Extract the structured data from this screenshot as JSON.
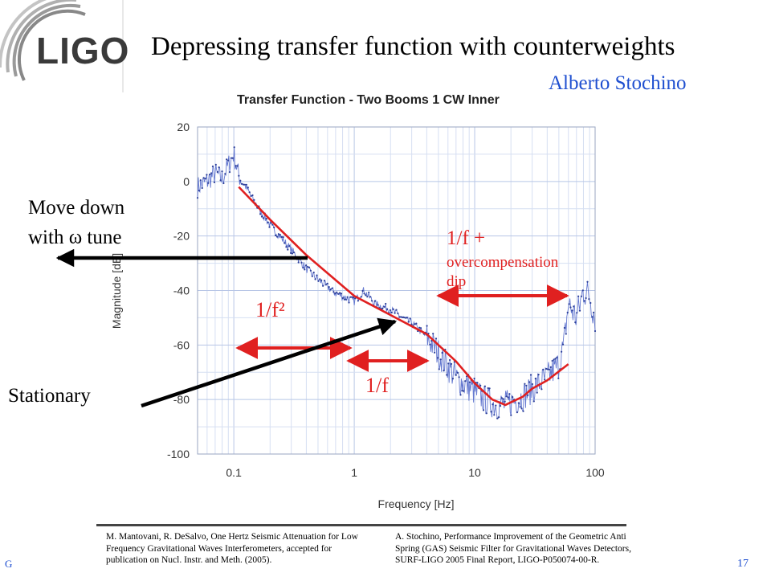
{
  "logo": {
    "text": "LIGO"
  },
  "slide": {
    "title": "Depressing transfer function with counterweights",
    "author": "Alberto Stochino"
  },
  "annotations": {
    "move_down": [
      "Move down",
      "with ω tune"
    ],
    "stationary": "Stationary",
    "one_over_f2": "1/f²",
    "one_over_f": "1/f",
    "overcomp_1": "1/f +",
    "overcomp_2": "overcompensation",
    "overcomp_3": "dip"
  },
  "references": {
    "left": "M. Mantovani, R. DeSalvo, One Hertz Seismic Attenuation for Low Frequency Gravitational Waves Interferometers, accepted for publication on Nucl. Instr. and Meth. (2005).",
    "right": "A. Stochino, Performance Improvement of the Geometric Anti Spring (GAS) Seismic Filter for Gravitational Waves Detectors, SURF-LIGO 2005 Final Report, LIGO-P050074-00-R."
  },
  "footer": {
    "left": "G",
    "right": "17"
  },
  "colors": {
    "fit": "#e02020",
    "measured": "#4a62c8",
    "author": "#1f4fd0"
  },
  "chart_data": {
    "type": "line",
    "title": "Transfer Function - Two Booms 1 CW Inner",
    "xlabel": "Frequency [Hz]",
    "ylabel": "Magnitude [dB]",
    "xscale": "log",
    "xlim": [
      0.05,
      100
    ],
    "ylim": [
      -100,
      20
    ],
    "xticks": [
      0.1,
      1,
      10,
      100
    ],
    "xtick_labels": [
      "0.1",
      "1",
      "10",
      "100"
    ],
    "yticks": [
      20,
      0,
      -20,
      -40,
      -60,
      -80,
      -100
    ],
    "grid": true,
    "series": [
      {
        "x": [
          0.05,
          0.06,
          0.07,
          0.08,
          0.09,
          0.1,
          0.11,
          0.13,
          0.15,
          0.2,
          0.3,
          0.4,
          0.5,
          0.7,
          1.0,
          1.2,
          1.5,
          2,
          2.5,
          3,
          4,
          5,
          6,
          7,
          8,
          10,
          12,
          15,
          18,
          20,
          25,
          30,
          40,
          50,
          55,
          60,
          70,
          80,
          90,
          100
        ],
        "y": [
          -2,
          0,
          3,
          1,
          6,
          10,
          2,
          -3,
          -8,
          -16,
          -25,
          -32,
          -36,
          -41,
          -44,
          -40,
          -45,
          -47,
          -50,
          -52,
          -57,
          -63,
          -68,
          -72,
          -74,
          -77,
          -80,
          -82,
          -82,
          -81,
          -79,
          -76,
          -72,
          -67,
          -60,
          -45,
          -50,
          -40,
          -42,
          -50
        ]
      },
      {
        "x": [
          0.11,
          0.2,
          0.4,
          1.0,
          2.0,
          4.0,
          5.0,
          7.0,
          10.0,
          14.0,
          18.0,
          20.0,
          25.0,
          30.0,
          40.0,
          60.0
        ],
        "y": [
          -2,
          -14,
          -27,
          -42,
          -49,
          -56,
          -60,
          -66,
          -74,
          -80,
          -82,
          -81,
          -79,
          -76,
          -73,
          -67
        ]
      }
    ]
  }
}
